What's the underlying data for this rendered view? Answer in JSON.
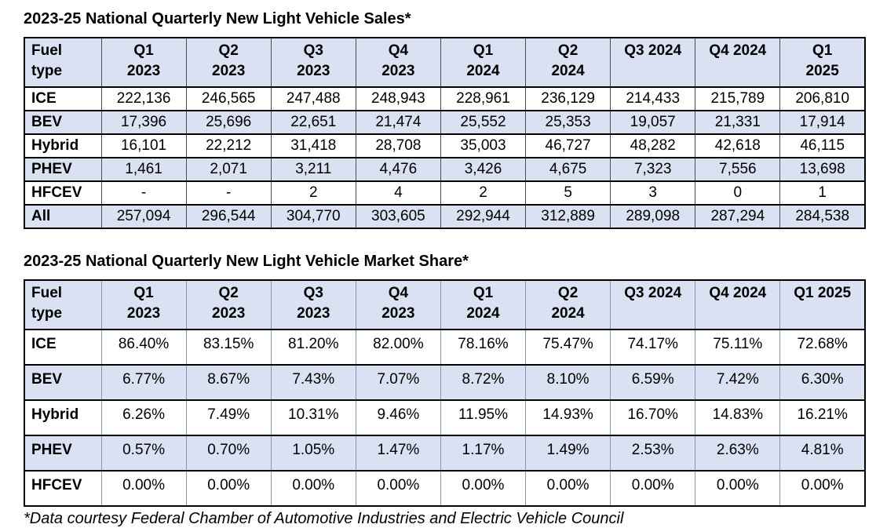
{
  "colors": {
    "background": "#ffffff",
    "text": "#000000",
    "table_header_fill": "#d9e1f2",
    "row_stripe_fill": "#d9e1f2",
    "horizontal_grid_line": "#000000",
    "column_divider_sales": "#4d4d4d",
    "column_divider_share": "#8496b0"
  },
  "sales_table": {
    "title": "2023-25 National Quarterly New Light Vehicle Sales*",
    "corner": {
      "line1": "Fuel",
      "line2": "type"
    },
    "columns": [
      {
        "line1": "Q1",
        "line2": "2023"
      },
      {
        "line1": "Q2",
        "line2": "2023"
      },
      {
        "line1": "Q3",
        "line2": "2023"
      },
      {
        "line1": "Q4",
        "line2": "2023"
      },
      {
        "line1": "Q1",
        "line2": "2024"
      },
      {
        "line1": "Q2",
        "line2": "2024"
      },
      {
        "line1": "Q3 2024",
        "line2": ""
      },
      {
        "line1": "Q4 2024",
        "line2": ""
      },
      {
        "line1": "Q1",
        "line2": "2025"
      }
    ],
    "rows": [
      {
        "label": "ICE",
        "values": [
          "222,136",
          "246,565",
          "247,488",
          "248,943",
          "228,961",
          "236,129",
          "214,433",
          "215,789",
          "206,810"
        ]
      },
      {
        "label": "BEV",
        "values": [
          "17,396",
          "25,696",
          "22,651",
          "21,474",
          "25,552",
          "25,353",
          "19,057",
          "21,331",
          "17,914"
        ]
      },
      {
        "label": "Hybrid",
        "values": [
          "16,101",
          "22,212",
          "31,418",
          "28,708",
          "35,003",
          "46,727",
          "48,282",
          "42,618",
          "46,115"
        ]
      },
      {
        "label": "PHEV",
        "values": [
          "1,461",
          "2,071",
          "3,211",
          "4,476",
          "3,426",
          "4,675",
          "7,323",
          "7,556",
          "13,698"
        ]
      },
      {
        "label": "HFCEV",
        "values": [
          "-",
          "-",
          "2",
          "4",
          "2",
          "5",
          "3",
          "0",
          "1"
        ]
      },
      {
        "label": "All",
        "values": [
          "257,094",
          "296,544",
          "304,770",
          "303,605",
          "292,944",
          "312,889",
          "289,098",
          "287,294",
          "284,538"
        ]
      }
    ]
  },
  "share_table": {
    "title": "2023-25 National Quarterly New Light Vehicle Market Share*",
    "corner": {
      "line1": "Fuel",
      "line2": "type"
    },
    "columns": [
      {
        "line1": "Q1",
        "line2": "2023"
      },
      {
        "line1": "Q2",
        "line2": "2023"
      },
      {
        "line1": "Q3",
        "line2": "2023"
      },
      {
        "line1": "Q4",
        "line2": "2023"
      },
      {
        "line1": "Q1",
        "line2": "2024"
      },
      {
        "line1": "Q2",
        "line2": "2024"
      },
      {
        "line1": "Q3 2024",
        "line2": ""
      },
      {
        "line1": "Q4 2024",
        "line2": ""
      },
      {
        "line1": "Q1 2025",
        "line2": ""
      }
    ],
    "rows": [
      {
        "label": "ICE",
        "values": [
          "86.40%",
          "83.15%",
          "81.20%",
          "82.00%",
          "78.16%",
          "75.47%",
          "74.17%",
          "75.11%",
          "72.68%"
        ]
      },
      {
        "label": "BEV",
        "values": [
          "6.77%",
          "8.67%",
          "7.43%",
          "7.07%",
          "8.72%",
          "8.10%",
          "6.59%",
          "7.42%",
          "6.30%"
        ]
      },
      {
        "label": "Hybrid",
        "values": [
          "6.26%",
          "7.49%",
          "10.31%",
          "9.46%",
          "11.95%",
          "14.93%",
          "16.70%",
          "14.83%",
          "16.21%"
        ]
      },
      {
        "label": "PHEV",
        "values": [
          "0.57%",
          "0.70%",
          "1.05%",
          "1.47%",
          "1.17%",
          "1.49%",
          "2.53%",
          "2.63%",
          "4.81%"
        ]
      },
      {
        "label": "HFCEV",
        "values": [
          "0.00%",
          "0.00%",
          "0.00%",
          "0.00%",
          "0.00%",
          "0.00%",
          "0.00%",
          "0.00%",
          "0.00%"
        ]
      }
    ]
  },
  "footnote": "*Data courtesy Federal Chamber of Automotive Industries and Electric Vehicle Council",
  "chart_data": [
    {
      "type": "table",
      "title": "2023-25 National Quarterly New Light Vehicle Sales*",
      "row_header": "Fuel type",
      "columns": [
        "Q1 2023",
        "Q2 2023",
        "Q3 2023",
        "Q4 2023",
        "Q1 2024",
        "Q2 2024",
        "Q3 2024",
        "Q4 2024",
        "Q1 2025"
      ],
      "rows": [
        {
          "label": "ICE",
          "values": [
            222136,
            246565,
            247488,
            248943,
            228961,
            236129,
            214433,
            215789,
            206810
          ]
        },
        {
          "label": "BEV",
          "values": [
            17396,
            25696,
            22651,
            21474,
            25552,
            25353,
            19057,
            21331,
            17914
          ]
        },
        {
          "label": "Hybrid",
          "values": [
            16101,
            22212,
            31418,
            28708,
            35003,
            46727,
            48282,
            42618,
            46115
          ]
        },
        {
          "label": "PHEV",
          "values": [
            1461,
            2071,
            3211,
            4476,
            3426,
            4675,
            7323,
            7556,
            13698
          ]
        },
        {
          "label": "HFCEV",
          "values": [
            null,
            null,
            2,
            4,
            2,
            5,
            3,
            0,
            1
          ]
        },
        {
          "label": "All",
          "values": [
            257094,
            296544,
            304770,
            303605,
            292944,
            312889,
            289098,
            287294,
            284538
          ]
        }
      ]
    },
    {
      "type": "table",
      "title": "2023-25 National Quarterly New Light Vehicle Market Share*",
      "row_header": "Fuel type",
      "unit": "percent",
      "columns": [
        "Q1 2023",
        "Q2 2023",
        "Q3 2023",
        "Q4 2023",
        "Q1 2024",
        "Q2 2024",
        "Q3 2024",
        "Q4 2024",
        "Q1 2025"
      ],
      "rows": [
        {
          "label": "ICE",
          "values": [
            86.4,
            83.15,
            81.2,
            82.0,
            78.16,
            75.47,
            74.17,
            75.11,
            72.68
          ]
        },
        {
          "label": "BEV",
          "values": [
            6.77,
            8.67,
            7.43,
            7.07,
            8.72,
            8.1,
            6.59,
            7.42,
            6.3
          ]
        },
        {
          "label": "Hybrid",
          "values": [
            6.26,
            7.49,
            10.31,
            9.46,
            11.95,
            14.93,
            16.7,
            14.83,
            16.21
          ]
        },
        {
          "label": "PHEV",
          "values": [
            0.57,
            0.7,
            1.05,
            1.47,
            1.17,
            1.49,
            2.53,
            2.63,
            4.81
          ]
        },
        {
          "label": "HFCEV",
          "values": [
            0.0,
            0.0,
            0.0,
            0.0,
            0.0,
            0.0,
            0.0,
            0.0,
            0.0
          ]
        }
      ]
    }
  ]
}
